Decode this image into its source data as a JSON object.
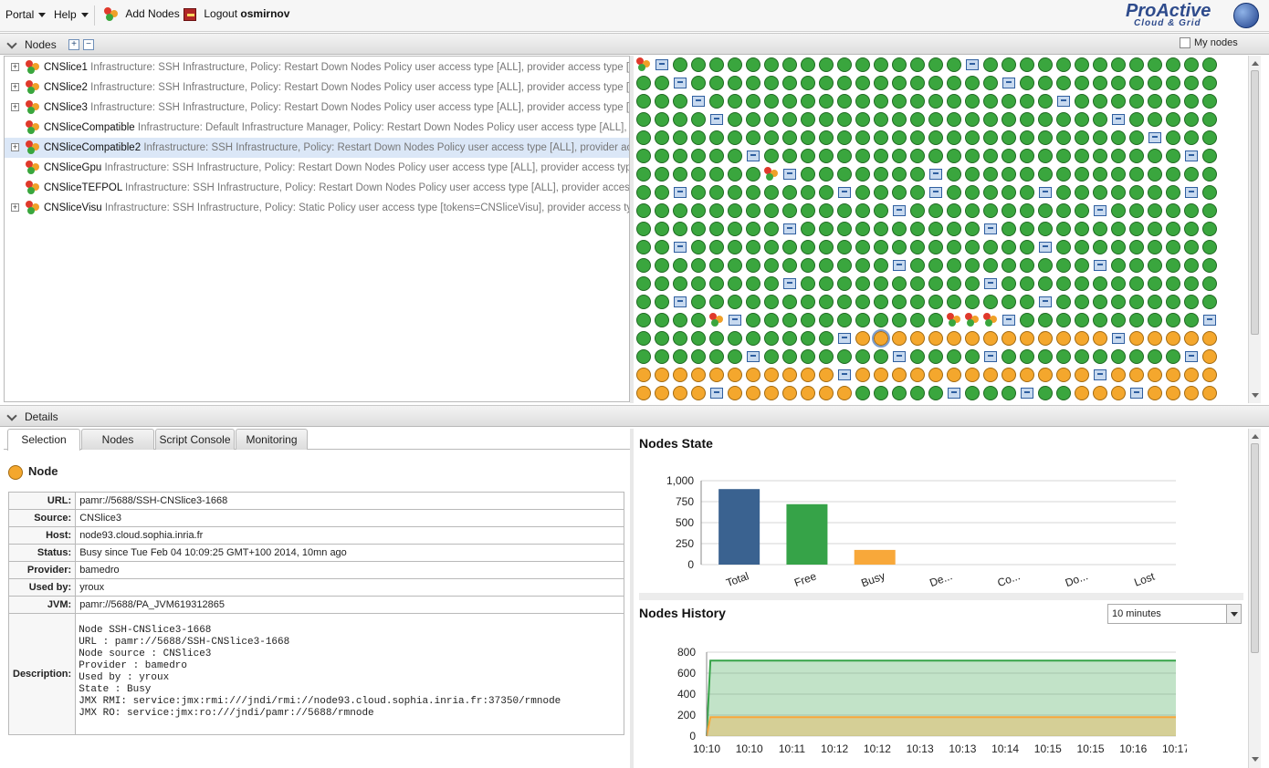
{
  "topbar": {
    "portal": "Portal",
    "help": "Help",
    "add_nodes": "Add Nodes",
    "logout_prefix": "Logout",
    "logout_user": "osmirnov",
    "logo_main": "ProActive",
    "logo_sub": "Cloud & Grid"
  },
  "nodes_section": {
    "title": "Nodes",
    "my_nodes": "My nodes"
  },
  "sources": [
    {
      "name": "CNSlice1",
      "desc": "Infrastructure: SSH Infrastructure, Policy: Restart Down Nodes Policy user access type [ALL], provider access type [M",
      "expandable": true
    },
    {
      "name": "CNSlice2",
      "desc": "Infrastructure: SSH Infrastructure, Policy: Restart Down Nodes Policy user access type [ALL], provider access type [M",
      "expandable": true
    },
    {
      "name": "CNSlice3",
      "desc": "Infrastructure: SSH Infrastructure, Policy: Restart Down Nodes Policy user access type [ALL], provider access type [M",
      "expandable": true
    },
    {
      "name": "CNSliceCompatible",
      "desc": "Infrastructure: Default Infrastructure Manager, Policy: Restart Down Nodes Policy user access type [ALL], pr",
      "expandable": false
    },
    {
      "name": "CNSliceCompatible2",
      "desc": "Infrastructure: SSH Infrastructure, Policy: Restart Down Nodes Policy user access type [ALL], provider acc",
      "expandable": true,
      "selected": true
    },
    {
      "name": "CNSliceGpu",
      "desc": "Infrastructure: SSH Infrastructure, Policy: Restart Down Nodes Policy user access type [ALL], provider access type",
      "expandable": false
    },
    {
      "name": "CNSliceTEFPOL",
      "desc": "Infrastructure: SSH Infrastructure, Policy: Restart Down Nodes Policy user access type [ALL], provider access",
      "expandable": false
    },
    {
      "name": "CNSliceVisu",
      "desc": "Infrastructure: SSH Infrastructure, Policy: Static Policy user access type [tokens=CNSliceVisu], provider access typ",
      "expandable": true
    }
  ],
  "node_grid": {
    "rows": [
      "SMGGGGGGGGGGGGGGGGMGGGGGGGGGGGGG",
      "GGMGGGGGGGGGGGGGGGGGMGGGGGGGGGGG",
      "GGGMGGGGGGGGGGGGGGGGGGGMGGGGGGGG",
      "GGGGMGGGGGGGGGGGGGGGGGGGGGMGGGGG",
      "GGGGGGGGGGGGGGGGGGGGGGGGGGGGMGGG",
      "GGGGGGMGGGGGGGGGGGGGGGGGGGGGGGMG",
      "GGGGGGGSMGGGGGGGMGGGGGGGGGGGGGGG",
      "GGMGGGGGGGGMGGGGMGGGGGMGGGGGGGMG",
      "GGGGGGGGGGGGGGMGGGGGGGGGGMGGGGGG",
      "GGGGGGGGMGGGGGGGGGGMGGGGGGGGGGGG",
      "GGMGGGGGGGGGGGGGGGGGGGMGGGGGGGGG",
      "GGGGGGGGGGGGGGMGGGGGGGGGGMGGGGGG",
      "GGGGGGGGMGGGGGGGGGGMGGGGGGGGGGGG",
      "GGMGGGGGGGGGGGGGGGGGGGMGGGGGGGGG",
      "GGGGSMGGGGGGGGGGGSSSMGGGGGGGGGGM",
      "GGGGGGGGGGGMOOOOOOOOOOOOOOMOOOOO",
      "GGGGGGMGGGGGGGMGGGGMGGGGGGGGGGMO",
      "OOOOOOOOOOOMOOOOOOOOOOOOOMOOOOOO",
      "OOOOMOOOOOOOGGGGGMGGGMGGOOOMOOOO"
    ]
  },
  "details_section": {
    "title": "Details"
  },
  "tabs": [
    "Selection",
    "Nodes",
    "Script Console",
    "Monitoring"
  ],
  "selected_node": {
    "title": "Node",
    "fields": [
      {
        "key": "URL:",
        "value": "pamr://5688/SSH-CNSlice3-1668"
      },
      {
        "key": "Source:",
        "value": "CNSlice3"
      },
      {
        "key": "Host:",
        "value": "node93.cloud.sophia.inria.fr"
      },
      {
        "key": "Status:",
        "value": "Busy since Tue Feb 04 10:09:25 GMT+100 2014, 10mn ago"
      },
      {
        "key": "Provider:",
        "value": "bamedro"
      },
      {
        "key": "Used by:",
        "value": "yroux"
      },
      {
        "key": "JVM:",
        "value": "pamr://5688/PA_JVM619312865"
      }
    ],
    "description_key": "Description:",
    "description": "Node SSH-CNSlice3-1668\nURL : pamr://5688/SSH-CNSlice3-1668\nNode source : CNSlice3\nProvider : bamedro\nUsed by : yroux\nState : Busy\nJMX RMI: service:jmx:rmi:///jndi/rmi://node93.cloud.sophia.inria.fr:37350/rmnode\nJMX RO: service:jmx:ro:///jndi/pamr://5688/rmnode"
  },
  "history_range": "10 minutes",
  "chart_data": [
    {
      "type": "bar",
      "title": "Nodes State",
      "categories": [
        "Total",
        "Free",
        "Busy",
        "De...",
        "Co...",
        "Do...",
        "Lost"
      ],
      "values": [
        900,
        720,
        175,
        0,
        0,
        0,
        0
      ],
      "colors": [
        "#3a6290",
        "#36a348",
        "#f8a83a",
        "#999999",
        "#999999",
        "#999999",
        "#999999"
      ],
      "yticks": [
        "0",
        "250",
        "500",
        "750",
        "1,000"
      ],
      "ylim": [
        0,
        1000
      ]
    },
    {
      "type": "area",
      "title": "Nodes History",
      "x": [
        "10:10",
        "10:10",
        "10:11",
        "10:12",
        "10:12",
        "10:13",
        "10:13",
        "10:14",
        "10:15",
        "10:15",
        "10:16",
        "10:17"
      ],
      "series": [
        {
          "values": [
            0,
            720,
            720,
            720,
            720,
            720,
            720,
            720,
            720,
            720,
            720,
            720
          ],
          "color": "#36a348"
        },
        {
          "values": [
            0,
            180,
            180,
            180,
            180,
            180,
            180,
            180,
            180,
            180,
            180,
            180
          ],
          "color": "#f8a83a"
        }
      ],
      "yticks": [
        "0",
        "200",
        "400",
        "600",
        "800"
      ],
      "ylim": [
        0,
        800
      ]
    }
  ]
}
